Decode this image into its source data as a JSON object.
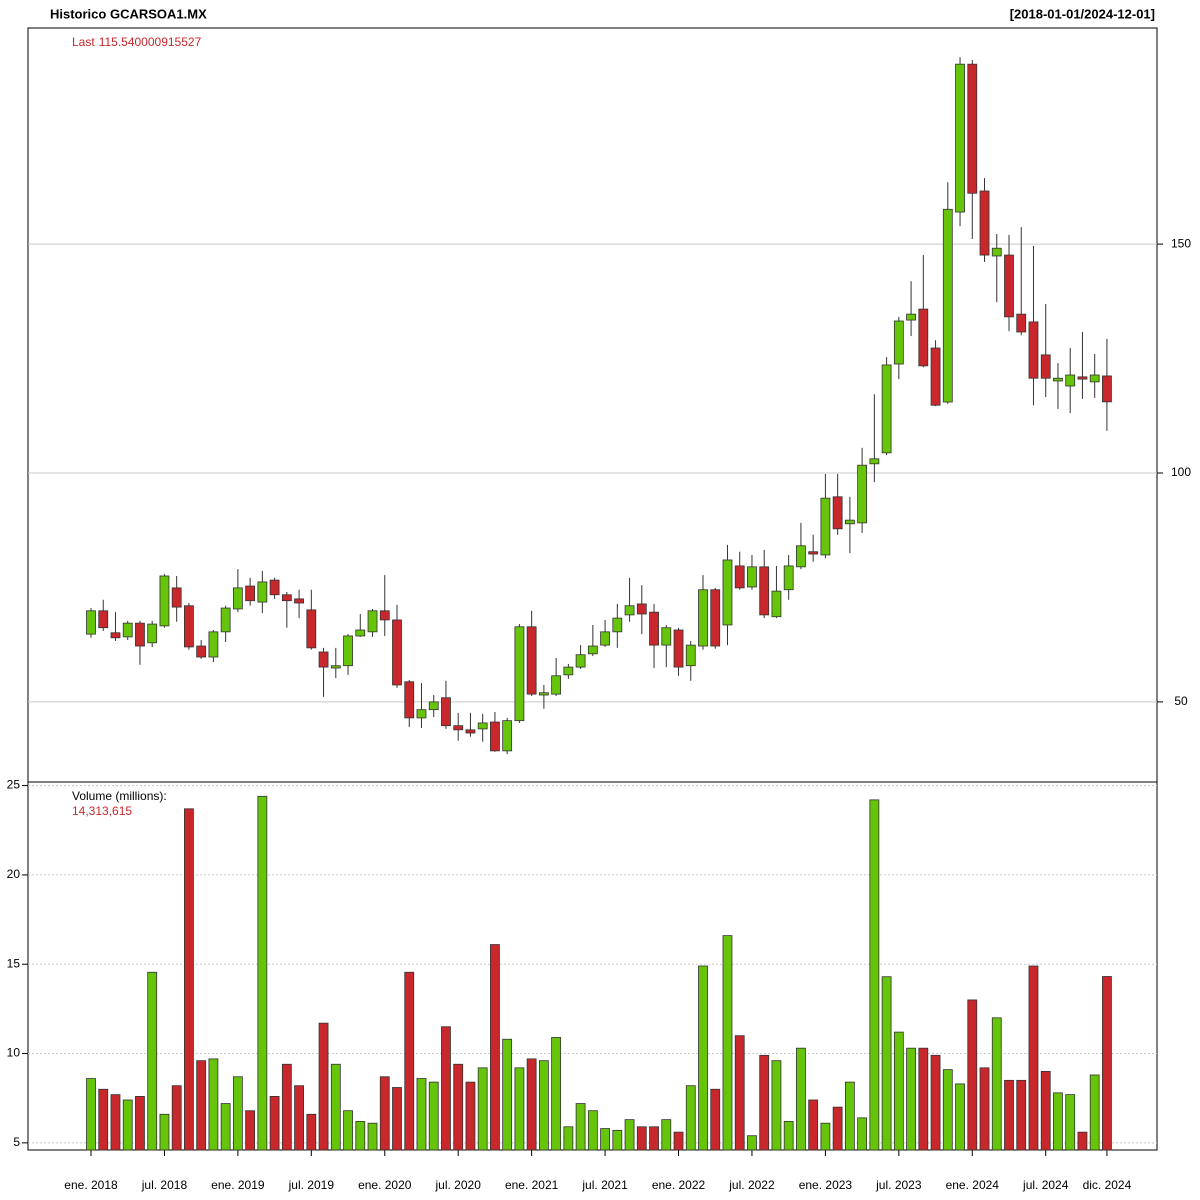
{
  "chart_data": {
    "type": "candlestick",
    "title": "Historico GCARSOA1.MX",
    "date_range": "[2018-01-01/2024-12-01]",
    "x": [
      "2018-01",
      "2018-02",
      "2018-03",
      "2018-04",
      "2018-05",
      "2018-06",
      "2018-07",
      "2018-08",
      "2018-09",
      "2018-10",
      "2018-11",
      "2018-12",
      "2019-01",
      "2019-02",
      "2019-03",
      "2019-04",
      "2019-05",
      "2019-06",
      "2019-07",
      "2019-08",
      "2019-09",
      "2019-10",
      "2019-11",
      "2019-12",
      "2020-01",
      "2020-02",
      "2020-03",
      "2020-04",
      "2020-05",
      "2020-06",
      "2020-07",
      "2020-08",
      "2020-09",
      "2020-10",
      "2020-11",
      "2020-12",
      "2021-01",
      "2021-02",
      "2021-03",
      "2021-04",
      "2021-05",
      "2021-06",
      "2021-07",
      "2021-08",
      "2021-09",
      "2021-10",
      "2021-11",
      "2021-12",
      "2022-01",
      "2022-02",
      "2022-03",
      "2022-04",
      "2022-05",
      "2022-06",
      "2022-07",
      "2022-08",
      "2022-09",
      "2022-10",
      "2022-11",
      "2022-12",
      "2023-01",
      "2023-02",
      "2023-03",
      "2023-04",
      "2023-05",
      "2023-06",
      "2023-07",
      "2023-08",
      "2023-09",
      "2023-10",
      "2023-11",
      "2023-12",
      "2024-01",
      "2024-02",
      "2024-03",
      "2024-04",
      "2024-05",
      "2024-06",
      "2024-07",
      "2024-08",
      "2024-09",
      "2024-10",
      "2024-11",
      "2024-12"
    ],
    "open": [
      64.8,
      69.9,
      65.1,
      64.2,
      67.2,
      62.9,
      66.6,
      74.9,
      71.0,
      62.2,
      59.8,
      65.3,
      70.3,
      75.3,
      71.8,
      76.6,
      73.4,
      72.5,
      70.1,
      60.9,
      57.4,
      57.9,
      64.4,
      65.3,
      69.9,
      67.9,
      54.4,
      46.5,
      48.3,
      50.9,
      44.8,
      43.9,
      44.1,
      45.6,
      39.3,
      45.9,
      66.4,
      51.5,
      51.7,
      55.9,
      57.6,
      60.5,
      62.4,
      65.3,
      69.0,
      71.4,
      69.6,
      62.4,
      65.7,
      57.9,
      62.2,
      74.5,
      66.8,
      79.7,
      75.1,
      79.5,
      68.6,
      74.5,
      79.5,
      82.8,
      82.1,
      94.8,
      88.9,
      89.1,
      102.0,
      104.4,
      123.8,
      133.4,
      135.8,
      127.3,
      115.5,
      157.0,
      189.3,
      161.6,
      147.4,
      147.6,
      134.7,
      133.0,
      125.8,
      120.1,
      119.0,
      121.0,
      119.9,
      121.2
    ],
    "high": [
      70.5,
      72.3,
      69.6,
      67.7,
      67.7,
      67.7,
      77.9,
      77.5,
      71.6,
      63.5,
      65.7,
      71.0,
      79.0,
      77.1,
      78.6,
      77.1,
      74.0,
      74.5,
      74.5,
      61.8,
      61.8,
      64.8,
      69.2,
      70.3,
      77.7,
      71.2,
      54.8,
      54.1,
      51.5,
      54.6,
      47.6,
      47.6,
      47.4,
      47.8,
      46.5,
      67.0,
      69.9,
      53.7,
      59.6,
      58.3,
      62.4,
      66.8,
      67.9,
      71.4,
      77.1,
      75.5,
      71.4,
      66.8,
      66.2,
      63.3,
      77.7,
      74.9,
      84.3,
      82.8,
      82.1,
      83.2,
      79.7,
      82.1,
      89.1,
      86.5,
      99.8,
      99.8,
      94.8,
      105.5,
      117.2,
      125.3,
      134.1,
      141.9,
      147.6,
      129.0,
      163.5,
      190.8,
      190.2,
      164.4,
      152.2,
      152.0,
      153.7,
      149.6,
      136.9,
      124.0,
      127.3,
      130.8,
      126.0,
      129.3
    ],
    "low": [
      64.0,
      65.5,
      63.3,
      63.5,
      58.1,
      62.0,
      66.2,
      67.5,
      61.4,
      59.4,
      58.7,
      63.1,
      69.6,
      71.0,
      69.4,
      72.5,
      66.2,
      68.3,
      61.4,
      51.1,
      55.2,
      55.9,
      64.2,
      64.2,
      64.4,
      53.1,
      44.5,
      44.3,
      46.7,
      44.1,
      41.5,
      42.4,
      41.3,
      39.1,
      38.6,
      45.4,
      51.3,
      48.5,
      51.3,
      55.0,
      57.2,
      60.0,
      62.0,
      61.8,
      67.5,
      64.8,
      57.4,
      57.6,
      55.7,
      54.6,
      61.4,
      61.6,
      62.4,
      74.5,
      74.5,
      68.3,
      68.3,
      72.3,
      79.0,
      80.6,
      81.4,
      86.5,
      82.5,
      86.9,
      98.0,
      103.9,
      120.5,
      129.9,
      123.1,
      114.6,
      115.1,
      153.9,
      151.1,
      146.1,
      137.3,
      131.0,
      130.1,
      114.8,
      116.6,
      114.0,
      113.1,
      116.2,
      116.4,
      109.2
    ],
    "close": [
      69.9,
      66.2,
      64.0,
      67.2,
      62.2,
      67.0,
      77.5,
      70.7,
      62.0,
      59.8,
      65.3,
      70.5,
      74.9,
      72.1,
      76.2,
      73.4,
      72.1,
      71.6,
      61.8,
      57.6,
      57.9,
      64.4,
      65.7,
      69.9,
      67.9,
      53.7,
      46.5,
      48.3,
      50.0,
      44.8,
      43.9,
      43.2,
      45.4,
      39.3,
      45.9,
      66.4,
      51.7,
      52.0,
      55.7,
      57.6,
      60.3,
      62.2,
      65.3,
      68.3,
      71.0,
      69.2,
      62.4,
      66.2,
      57.6,
      62.4,
      74.5,
      62.2,
      81.0,
      74.9,
      79.5,
      69.0,
      74.2,
      79.7,
      84.1,
      82.3,
      94.5,
      87.8,
      89.7,
      101.7,
      103.1,
      123.6,
      133.2,
      134.7,
      123.4,
      114.8,
      157.6,
      189.3,
      161.1,
      147.6,
      149.1,
      134.1,
      130.8,
      120.7,
      120.7,
      120.7,
      121.4,
      120.5,
      121.4,
      115.54
    ],
    "volume": [
      8.6,
      8.0,
      7.7,
      7.4,
      7.6,
      14.55,
      6.6,
      8.2,
      23.7,
      9.6,
      9.7,
      7.2,
      8.7,
      6.8,
      24.4,
      7.6,
      9.4,
      8.2,
      6.6,
      11.7,
      9.4,
      6.8,
      6.2,
      6.1,
      8.7,
      8.1,
      14.55,
      8.6,
      8.4,
      11.5,
      9.4,
      8.4,
      9.2,
      16.1,
      10.8,
      9.2,
      9.7,
      9.6,
      10.9,
      5.9,
      7.2,
      6.8,
      5.8,
      5.7,
      6.3,
      5.9,
      5.9,
      6.3,
      5.6,
      8.2,
      14.9,
      8.0,
      16.6,
      11.0,
      5.4,
      9.9,
      9.6,
      6.2,
      10.3,
      7.4,
      6.1,
      7.0,
      8.4,
      6.4,
      24.2,
      14.3,
      11.2,
      10.3,
      10.3,
      9.9,
      9.1,
      8.3,
      13.0,
      9.2,
      12.0,
      8.5,
      8.5,
      14.9,
      9.0,
      7.8,
      7.7,
      5.6,
      8.8,
      14.313615
    ],
    "up_color": "#66c40a",
    "down_color": "#c8282c",
    "ylim": [
      32.5,
      197.2
    ],
    "yticks": [
      50,
      100,
      150
    ],
    "grid": true,
    "volume_label": "Volume (millions):",
    "volume_ylim": [
      4.6,
      25.2
    ],
    "volume_yticks": [
      5,
      10,
      15,
      20,
      25
    ],
    "last_label": "Last",
    "last_value": 115.540000915527,
    "last_volume": {
      "value": 14.313615,
      "label": "14,313,615"
    },
    "xticks": [
      {
        "value": "2018-01",
        "label": "ene. 2018"
      },
      {
        "value": "2018-07",
        "label": "jul. 2018"
      },
      {
        "value": "2019-01",
        "label": "ene. 2019"
      },
      {
        "value": "2019-07",
        "label": "jul. 2019"
      },
      {
        "value": "2020-01",
        "label": "ene. 2020"
      },
      {
        "value": "2020-07",
        "label": "jul. 2020"
      },
      {
        "value": "2021-01",
        "label": "ene. 2021"
      },
      {
        "value": "2021-07",
        "label": "jul. 2021"
      },
      {
        "value": "2022-01",
        "label": "ene. 2022"
      },
      {
        "value": "2022-07",
        "label": "jul. 2022"
      },
      {
        "value": "2023-01",
        "label": "ene. 2023"
      },
      {
        "value": "2023-07",
        "label": "jul. 2023"
      },
      {
        "value": "2024-01",
        "label": "ene. 2024"
      },
      {
        "value": "2024-07",
        "label": "jul. 2024"
      },
      {
        "value": "2024-12",
        "label": "dic. 2024"
      }
    ]
  }
}
